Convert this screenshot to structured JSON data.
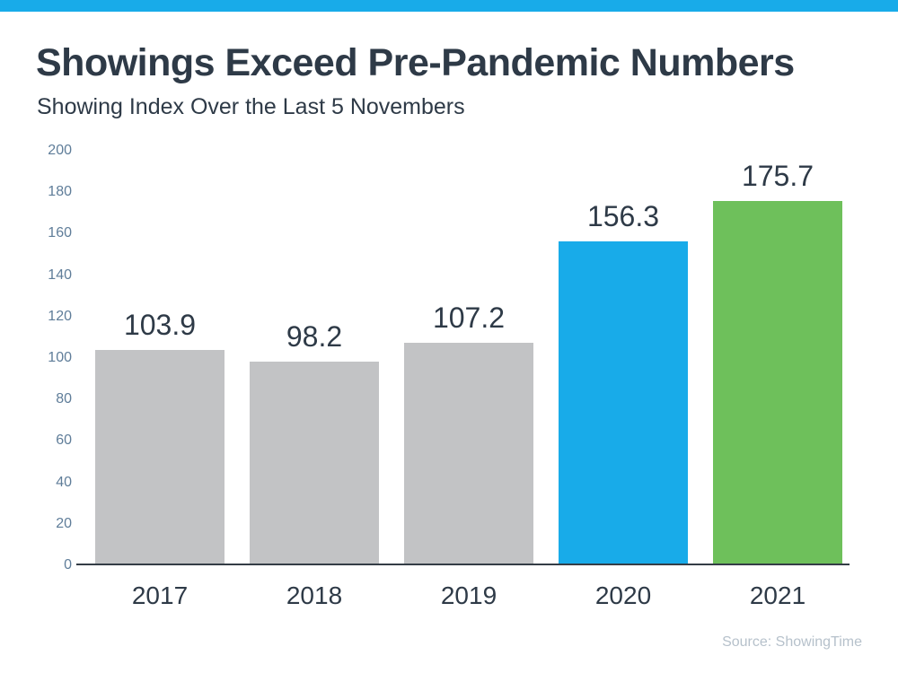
{
  "header": {
    "title": "Showings Exceed Pre-Pandemic Numbers",
    "subtitle": "Showing Index Over the Last 5 Novembers"
  },
  "footer": {
    "source": "Source: ShowingTime"
  },
  "colors": {
    "top_accent_bar": "#18abe9",
    "bar_gray": "#c2c3c5",
    "bar_blue": "#18abe9",
    "bar_green": "#6ec05b",
    "dark_text": "#2e3a47",
    "y_tick_text": "#5f7d99",
    "axis_line": "#343d46",
    "source_text": "#b6c1cb"
  },
  "chart_data": {
    "type": "bar",
    "title": "Showings Exceed Pre-Pandemic Numbers",
    "subtitle": "Showing Index Over the Last 5 Novembers",
    "categories": [
      "2017",
      "2018",
      "2019",
      "2020",
      "2021"
    ],
    "values": [
      103.9,
      98.2,
      107.2,
      156.3,
      175.7
    ],
    "value_labels": [
      "103.9",
      "98.2",
      "107.2",
      "156.3",
      "175.7"
    ],
    "bar_colors": [
      "#c2c3c5",
      "#c2c3c5",
      "#c2c3c5",
      "#18abe9",
      "#6ec05b"
    ],
    "y_ticks": [
      0,
      20,
      40,
      60,
      80,
      100,
      120,
      140,
      160,
      180,
      200
    ],
    "ylim": [
      0,
      200
    ],
    "xlabel": "",
    "ylabel": "",
    "grid": false,
    "legend": false,
    "annotation": "Source: ShowingTime"
  }
}
